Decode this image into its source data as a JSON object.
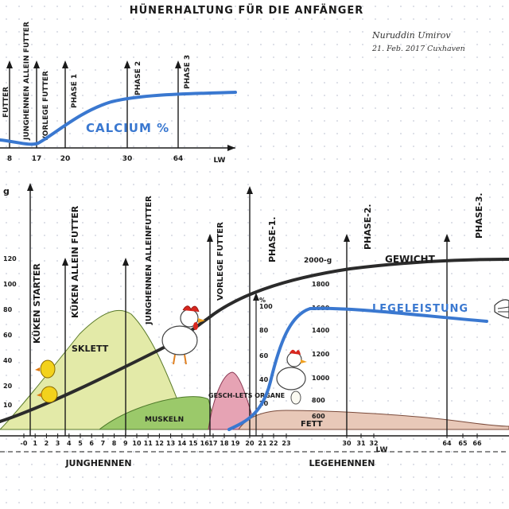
{
  "title": "HÜNERHALTUNG FÜR DIE ANFÄNGER",
  "author": {
    "name": "Nuruddin Umirov",
    "date_place": "21. Feb. 2017 Cuxhaven"
  },
  "top_chart": {
    "phases": [
      "FUTTER",
      "JUNGHENNEN ALLEIN FUTTER",
      "VORLEGE FUTTER",
      "PHASE 1",
      "PHASE 2",
      "PHASE 3"
    ],
    "curve_label": "CALCIUM %",
    "x_ticks": [
      "8",
      "17",
      "20",
      "30",
      "64"
    ],
    "x_unit": "LW"
  },
  "main_chart": {
    "left_scale": [
      "g",
      "120",
      "100",
      "80",
      "60",
      "40",
      "20",
      "10"
    ],
    "stage_labels": [
      "KÜKEN STARTER",
      "KÜKEN ALLEIN FUTTER",
      "JUNGHENNEN ALLEINFUTTER",
      "VORLEGE FUTTER",
      "PHASE-1.",
      "PHASE-2.",
      "PHASE-3."
    ],
    "weight_scale": [
      "2000-g",
      "1800",
      "1600",
      "1400",
      "1200",
      "1000",
      "800",
      "600"
    ],
    "percent_scale": [
      "%",
      "100",
      "80",
      "60",
      "40",
      "20"
    ],
    "areas": [
      "SKLETT",
      "MUSKELN",
      "GESCH-LETS ORGANE",
      "FETT"
    ],
    "curves": [
      "GEWICHT",
      "LEGELEISTUNG"
    ],
    "x_ticks_left": [
      "-0",
      "1",
      "2",
      "3",
      "4",
      "5",
      "6",
      "7",
      "8",
      "9",
      "10",
      "11",
      "12",
      "13",
      "14",
      "15",
      "16"
    ],
    "x_ticks_right": [
      "17",
      "18",
      "19",
      "20",
      "21",
      "22",
      "23",
      "30",
      "31",
      "32",
      "64",
      "65",
      "66"
    ],
    "x_unit": "LW",
    "periods": [
      "JUNGHENNEN",
      "LEGEHENNEN"
    ]
  },
  "colors": {
    "calcium": "#3a78d0",
    "weight": "#2b2b2b",
    "skeleton": "#e3eaa8",
    "muscle": "#9bc96a",
    "organs": "#e6a3b4",
    "fat": "#e8c8b8",
    "ink": "#1a1a1a"
  }
}
